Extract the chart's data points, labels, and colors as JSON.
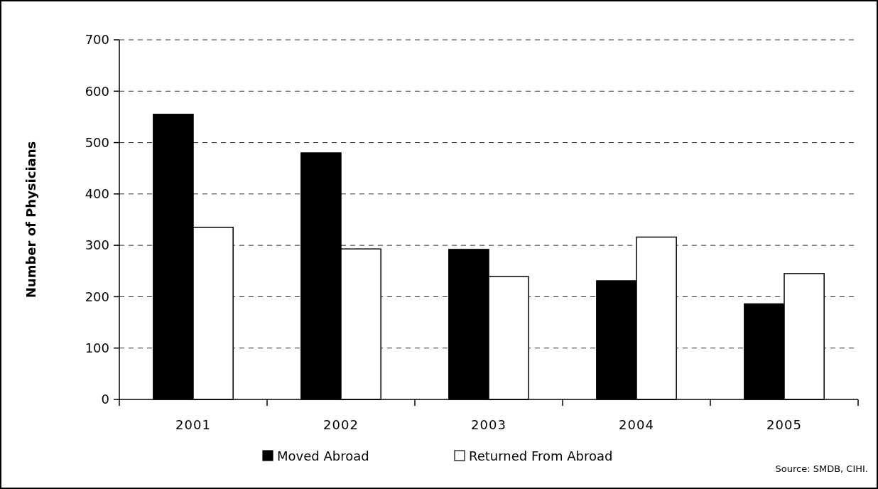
{
  "chart_data": {
    "type": "bar",
    "ylabel": "Number of Physicians",
    "categories": [
      "2001",
      "2002",
      "2003",
      "2004",
      "2005"
    ],
    "series": [
      {
        "name": "Moved Abroad",
        "color": "#000000",
        "values": [
          555,
          480,
          292,
          231,
          186
        ]
      },
      {
        "name": "Returned From Abroad",
        "color": "#ffffff",
        "values": [
          335,
          293,
          239,
          316,
          245
        ]
      }
    ],
    "ylim": [
      0,
      700
    ],
    "yticks": [
      0,
      100,
      200,
      300,
      400,
      500,
      600,
      700
    ],
    "grid": "y",
    "legend": "bottom",
    "annotations": [
      "Source: SMDB, CIHI."
    ]
  }
}
